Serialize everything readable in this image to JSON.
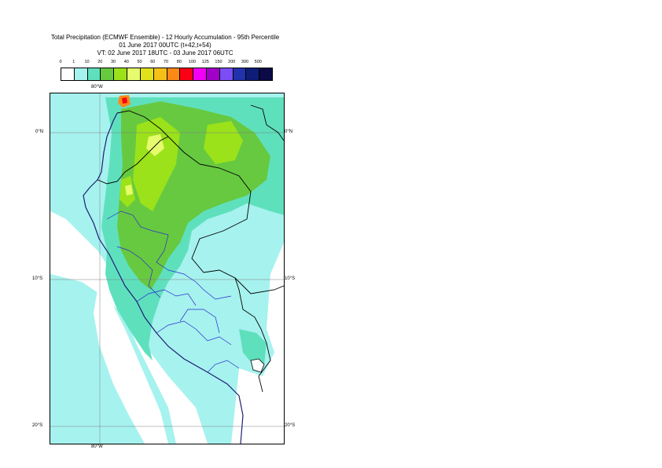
{
  "title": {
    "line1": "Total Precipitation (ECMWF Ensemble) - 12 Hourly Accumulation - 95th Percentile",
    "line2": "01 June 2017 00UTC (t+42,t+54)",
    "line3": "VT: 02 June 2017 18UTC - 03 June 2017 06UTC"
  },
  "legend": {
    "labels": [
      "0",
      "1",
      "10",
      "20",
      "30",
      "40",
      "50",
      "60",
      "70",
      "80",
      "100",
      "125",
      "150",
      "200",
      "300",
      "500"
    ],
    "colors": [
      "#ffffff",
      "#a6f2ee",
      "#5fe0bd",
      "#67c940",
      "#9be21a",
      "#e6fb6e",
      "#e1e21c",
      "#f5c118",
      "#fa8a16",
      "#fb0013",
      "#f100f5",
      "#a000c8",
      "#7b4ef5",
      "#2232ad",
      "#0e1e78",
      "#0a0a46"
    ]
  },
  "axes": {
    "lon_top": "80°W",
    "lon_bottom": "80°W",
    "lat_0": "0°N",
    "lat_10": "10°S",
    "lat_20": "20°S"
  }
}
